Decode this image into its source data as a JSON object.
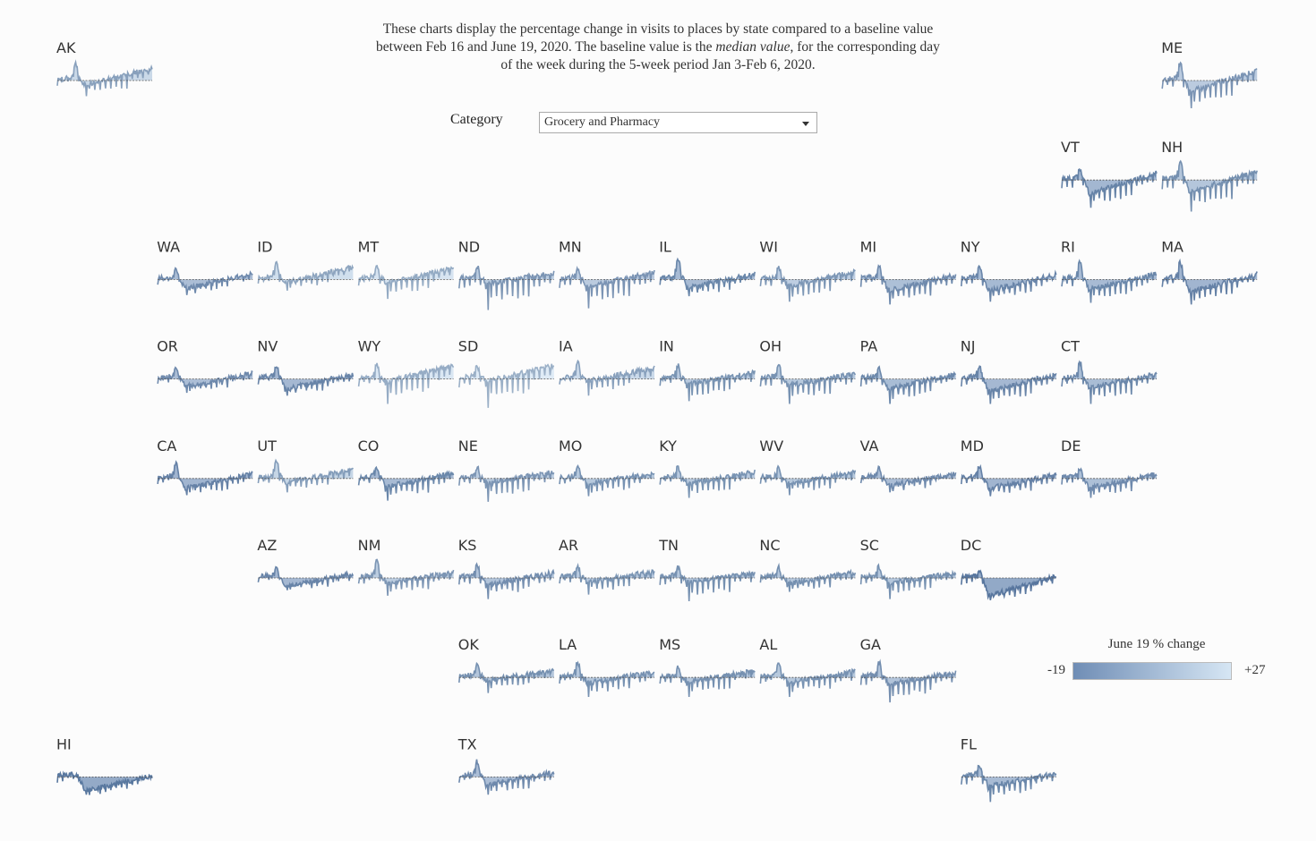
{
  "intro": {
    "line1": "These charts display the percentage change in visits to places by state compared to a baseline value",
    "line2a": "between Feb 16 and June 19, 2020. The baseline value is the ",
    "line2em": "median value",
    "line2b": ", for the corresponding day",
    "line3": "of the week during the 5-week period Jan 3-Feb 6, 2020."
  },
  "filter": {
    "label": "Category",
    "selected": "Grocery and Pharmacy"
  },
  "legend": {
    "title": "June 19 % change",
    "min_label": "-19",
    "max_label": "+27",
    "min_color": "#6f8db5",
    "max_color": "#d6e6f4"
  },
  "colors": {
    "baseline": "#555555",
    "dark": "#2c4c74",
    "light": "#d6e6f4"
  },
  "chart_data": {
    "type": "area",
    "title": "",
    "x_range": [
      "Feb 16, 2020",
      "June 19, 2020"
    ],
    "baseline_period": "Jan 3-Feb 6, 2020",
    "color_scale": {
      "min": -19,
      "max": 27
    },
    "series": [
      {
        "state": "AK",
        "row": 0,
        "col": 0,
        "june19": 14,
        "peak": 30,
        "trough": -28,
        "level": -8,
        "recovery": 22
      },
      {
        "state": "ME",
        "row": 0,
        "col": 11,
        "june19": 5,
        "peak": 30,
        "trough": -50,
        "level": -20,
        "recovery": 18
      },
      {
        "state": "VT",
        "row": 1,
        "col": 10,
        "june19": -9,
        "peak": 20,
        "trough": -50,
        "level": -25,
        "recovery": 13
      },
      {
        "state": "NH",
        "row": 1,
        "col": 11,
        "june19": 1,
        "peak": 32,
        "trough": -57,
        "level": -20,
        "recovery": 15
      },
      {
        "state": "WA",
        "row": 2,
        "col": 1,
        "june19": -4,
        "peak": 18,
        "trough": -28,
        "level": -16,
        "recovery": 11
      },
      {
        "state": "ID",
        "row": 2,
        "col": 2,
        "june19": 18,
        "peak": 28,
        "trough": -20,
        "level": -5,
        "recovery": 22
      },
      {
        "state": "MT",
        "row": 2,
        "col": 3,
        "june19": 22,
        "peak": 25,
        "trough": -35,
        "level": -6,
        "recovery": 20
      },
      {
        "state": "ND",
        "row": 2,
        "col": 4,
        "june19": 6,
        "peak": 23,
        "trough": -55,
        "level": -8,
        "recovery": 12
      },
      {
        "state": "MN",
        "row": 2,
        "col": 5,
        "june19": 5,
        "peak": 20,
        "trough": -52,
        "level": -12,
        "recovery": 13
      },
      {
        "state": "IL",
        "row": 2,
        "col": 6,
        "june19": -6,
        "peak": 38,
        "trough": -30,
        "level": -15,
        "recovery": 10
      },
      {
        "state": "WI",
        "row": 2,
        "col": 7,
        "june19": 7,
        "peak": 22,
        "trough": -40,
        "level": -12,
        "recovery": 14
      },
      {
        "state": "MI",
        "row": 2,
        "col": 8,
        "june19": -3,
        "peak": 25,
        "trough": -45,
        "level": -20,
        "recovery": 8
      },
      {
        "state": "NY",
        "row": 2,
        "col": 9,
        "june19": -7,
        "peak": 25,
        "trough": -40,
        "level": -20,
        "recovery": 9
      },
      {
        "state": "RI",
        "row": 2,
        "col": 10,
        "june19": -6,
        "peak": 30,
        "trough": -42,
        "level": -18,
        "recovery": 10
      },
      {
        "state": "MA",
        "row": 2,
        "col": 11,
        "june19": -10,
        "peak": 30,
        "trough": -45,
        "level": -22,
        "recovery": 10
      },
      {
        "state": "OR",
        "row": 3,
        "col": 1,
        "june19": -4,
        "peak": 20,
        "trough": -25,
        "level": -14,
        "recovery": 10
      },
      {
        "state": "NV",
        "row": 3,
        "col": 2,
        "june19": -8,
        "peak": 25,
        "trough": -30,
        "level": -18,
        "recovery": 8
      },
      {
        "state": "WY",
        "row": 3,
        "col": 3,
        "june19": 24,
        "peak": 25,
        "trough": -45,
        "level": -5,
        "recovery": 24
      },
      {
        "state": "SD",
        "row": 3,
        "col": 4,
        "june19": 27,
        "peak": 22,
        "trough": -52,
        "level": -4,
        "recovery": 24
      },
      {
        "state": "IA",
        "row": 3,
        "col": 5,
        "june19": 15,
        "peak": 30,
        "trough": -30,
        "level": -4,
        "recovery": 20
      },
      {
        "state": "IN",
        "row": 3,
        "col": 6,
        "june19": 4,
        "peak": 25,
        "trough": -40,
        "level": -10,
        "recovery": 12
      },
      {
        "state": "OH",
        "row": 3,
        "col": 7,
        "june19": 3,
        "peak": 25,
        "trough": -45,
        "level": -12,
        "recovery": 10
      },
      {
        "state": "PA",
        "row": 3,
        "col": 8,
        "june19": -5,
        "peak": 20,
        "trough": -45,
        "level": -18,
        "recovery": 9
      },
      {
        "state": "NJ",
        "row": 3,
        "col": 9,
        "june19": -8,
        "peak": 23,
        "trough": -45,
        "level": -22,
        "recovery": 9
      },
      {
        "state": "CT",
        "row": 3,
        "col": 10,
        "june19": -5,
        "peak": 30,
        "trough": -45,
        "level": -16,
        "recovery": 9
      },
      {
        "state": "CA",
        "row": 4,
        "col": 1,
        "june19": -10,
        "peak": 28,
        "trough": -30,
        "level": -18,
        "recovery": 8
      },
      {
        "state": "UT",
        "row": 4,
        "col": 2,
        "june19": 12,
        "peak": 32,
        "trough": -25,
        "level": -8,
        "recovery": 16
      },
      {
        "state": "CO",
        "row": 4,
        "col": 3,
        "june19": -6,
        "peak": 20,
        "trough": -40,
        "level": -15,
        "recovery": 9
      },
      {
        "state": "NE",
        "row": 4,
        "col": 4,
        "june19": 6,
        "peak": 20,
        "trough": -42,
        "level": -8,
        "recovery": 12
      },
      {
        "state": "MO",
        "row": 4,
        "col": 5,
        "june19": 3,
        "peak": 22,
        "trough": -32,
        "level": -10,
        "recovery": 10
      },
      {
        "state": "KY",
        "row": 4,
        "col": 6,
        "june19": 4,
        "peak": 20,
        "trough": -35,
        "level": -10,
        "recovery": 12
      },
      {
        "state": "WV",
        "row": 4,
        "col": 7,
        "june19": 3,
        "peak": 18,
        "trough": -30,
        "level": -10,
        "recovery": 12
      },
      {
        "state": "VA",
        "row": 4,
        "col": 8,
        "june19": -4,
        "peak": 18,
        "trough": -25,
        "level": -13,
        "recovery": 9
      },
      {
        "state": "MD",
        "row": 4,
        "col": 9,
        "june19": -10,
        "peak": 20,
        "trough": -32,
        "level": -18,
        "recovery": 7
      },
      {
        "state": "DE",
        "row": 4,
        "col": 10,
        "june19": -3,
        "peak": 18,
        "trough": -35,
        "level": -17,
        "recovery": 8
      },
      {
        "state": "AZ",
        "row": 5,
        "col": 2,
        "june19": -8,
        "peak": 18,
        "trough": -22,
        "level": -14,
        "recovery": 7
      },
      {
        "state": "NM",
        "row": 5,
        "col": 3,
        "june19": 6,
        "peak": 32,
        "trough": -32,
        "level": -10,
        "recovery": 10
      },
      {
        "state": "KS",
        "row": 5,
        "col": 4,
        "june19": 0,
        "peak": 22,
        "trough": -38,
        "level": -12,
        "recovery": 10
      },
      {
        "state": "AR",
        "row": 5,
        "col": 5,
        "june19": 4,
        "peak": 22,
        "trough": -30,
        "level": -8,
        "recovery": 12
      },
      {
        "state": "TN",
        "row": 5,
        "col": 6,
        "june19": 2,
        "peak": 20,
        "trough": -42,
        "level": -8,
        "recovery": 10
      },
      {
        "state": "NC",
        "row": 5,
        "col": 7,
        "june19": 1,
        "peak": 20,
        "trough": -25,
        "level": -10,
        "recovery": 10
      },
      {
        "state": "SC",
        "row": 5,
        "col": 8,
        "june19": 2,
        "peak": 20,
        "trough": -38,
        "level": -9,
        "recovery": 10
      },
      {
        "state": "DC",
        "row": 5,
        "col": 9,
        "june19": -19,
        "peak": 12,
        "trough": -40,
        "level": -32,
        "recovery": 4
      },
      {
        "state": "OK",
        "row": 6,
        "col": 4,
        "june19": 1,
        "peak": 22,
        "trough": -28,
        "level": -5,
        "recovery": 12
      },
      {
        "state": "LA",
        "row": 6,
        "col": 5,
        "june19": 2,
        "peak": 28,
        "trough": -35,
        "level": -10,
        "recovery": 10
      },
      {
        "state": "MS",
        "row": 6,
        "col": 6,
        "june19": 2,
        "peak": 20,
        "trough": -35,
        "level": -8,
        "recovery": 12
      },
      {
        "state": "AL",
        "row": 6,
        "col": 7,
        "june19": 3,
        "peak": 28,
        "trough": -35,
        "level": -10,
        "recovery": 11
      },
      {
        "state": "GA",
        "row": 6,
        "col": 8,
        "june19": 0,
        "peak": 28,
        "trough": -45,
        "level": -12,
        "recovery": 9
      },
      {
        "state": "HI",
        "row": 7,
        "col": 0,
        "june19": -18,
        "peak": 5,
        "trough": -32,
        "level": -25,
        "recovery": 2
      },
      {
        "state": "TX",
        "row": 7,
        "col": 4,
        "june19": -4,
        "peak": 28,
        "trough": -32,
        "level": -14,
        "recovery": 8
      },
      {
        "state": "FL",
        "row": 7,
        "col": 9,
        "june19": -6,
        "peak": 18,
        "trough": -45,
        "level": -17,
        "recovery": 7
      }
    ]
  }
}
